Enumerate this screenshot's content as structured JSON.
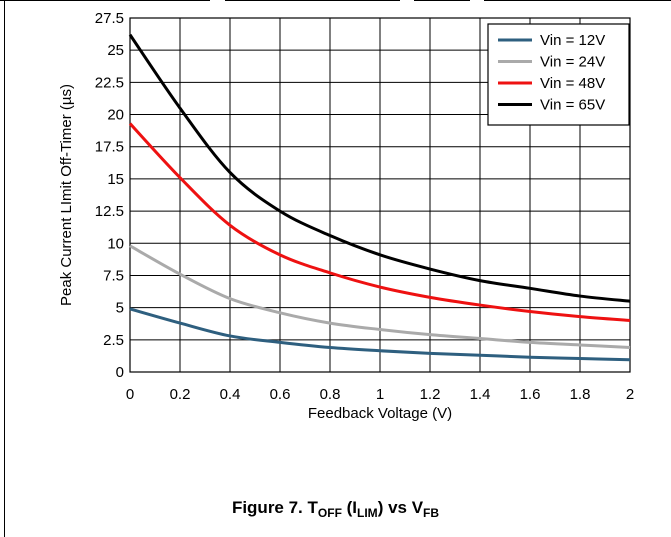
{
  "chart_data": {
    "type": "line",
    "xlabel": "Feedback Voltage (V)",
    "ylabel": "Peak Current LImit Off-Timer (µs)",
    "xlim": [
      0,
      2
    ],
    "ylim": [
      0,
      27.5
    ],
    "x_ticks": [
      "0",
      "0.2",
      "0.4",
      "0.6",
      "0.8",
      "1",
      "1.2",
      "1.4",
      "1.6",
      "1.8",
      "2"
    ],
    "y_ticks": [
      "0",
      "2.5",
      "5",
      "7.5",
      "10",
      "12.5",
      "15",
      "17.5",
      "20",
      "22.5",
      "25",
      "27.5"
    ],
    "grid": true,
    "legend_position": "top-right",
    "x": [
      0,
      0.2,
      0.4,
      0.6,
      0.8,
      1.0,
      1.2,
      1.4,
      1.6,
      1.8,
      2.0
    ],
    "series": [
      {
        "name": "Vin = 12V",
        "color": "#2e5f7f",
        "values": [
          4.9,
          3.8,
          2.8,
          2.3,
          1.9,
          1.65,
          1.45,
          1.3,
          1.15,
          1.05,
          0.95
        ]
      },
      {
        "name": "Vin = 24V",
        "color": "#aaaaaa",
        "values": [
          9.8,
          7.6,
          5.7,
          4.6,
          3.8,
          3.3,
          2.9,
          2.6,
          2.3,
          2.1,
          1.9
        ]
      },
      {
        "name": "Vin = 48V",
        "color": "#ee1111",
        "values": [
          19.3,
          15.1,
          11.4,
          9.1,
          7.7,
          6.6,
          5.8,
          5.2,
          4.7,
          4.3,
          4.0
        ]
      },
      {
        "name": "Vin = 65V",
        "color": "#000000",
        "values": [
          26.2,
          20.5,
          15.5,
          12.5,
          10.6,
          9.1,
          8.0,
          7.1,
          6.5,
          5.9,
          5.5
        ]
      }
    ]
  },
  "caption": {
    "prefix": "Figure 7. T",
    "sub1": "OFF",
    "mid1": " (I",
    "sub2": "LIM",
    "mid2": ") vs V",
    "sub3": "FB"
  }
}
